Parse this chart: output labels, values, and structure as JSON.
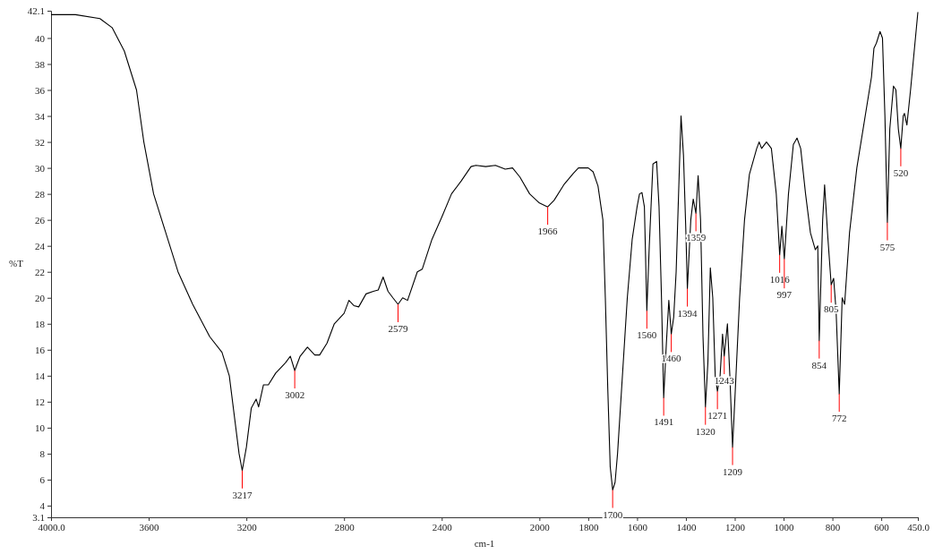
{
  "chart_data": {
    "type": "line",
    "xlabel": "cm-1",
    "ylabel": "%T",
    "xlim": [
      4000,
      450
    ],
    "ylim": [
      3.1,
      42.1
    ],
    "xticks": [
      {
        "value": 4000,
        "label": "4000.0"
      },
      3600,
      3200,
      2800,
      2400,
      2000,
      1800,
      1600,
      1400,
      1200,
      1000,
      800,
      600,
      {
        "value": 450,
        "label": "450.0"
      }
    ],
    "yticks": [
      3.1,
      4,
      6,
      8,
      10,
      12,
      14,
      16,
      18,
      20,
      22,
      24,
      26,
      28,
      30,
      32,
      34,
      36,
      38,
      40,
      42.1
    ],
    "grid": false,
    "marker": "none",
    "line_style": "solid",
    "series": [
      {
        "color": "#000000",
        "x": [
          4000,
          3900,
          3800,
          3750,
          3700,
          3650,
          3620,
          3580,
          3530,
          3480,
          3420,
          3350,
          3300,
          3270,
          3250,
          3230,
          3217,
          3200,
          3180,
          3160,
          3150,
          3130,
          3110,
          3080,
          3040,
          3020,
          3002,
          2980,
          2950,
          2920,
          2900,
          2870,
          2840,
          2800,
          2780,
          2760,
          2740,
          2710,
          2680,
          2660,
          2640,
          2620,
          2600,
          2579,
          2560,
          2540,
          2500,
          2480,
          2440,
          2400,
          2360,
          2320,
          2280,
          2260,
          2220,
          2180,
          2140,
          2110,
          2080,
          2040,
          2000,
          1966,
          1940,
          1900,
          1860,
          1840,
          1800,
          1780,
          1760,
          1740,
          1730,
          1720,
          1710,
          1700,
          1690,
          1680,
          1660,
          1640,
          1620,
          1600,
          1590,
          1580,
          1570,
          1560,
          1550,
          1535,
          1520,
          1510,
          1500,
          1491,
          1480,
          1470,
          1460,
          1450,
          1440,
          1420,
          1410,
          1400,
          1394,
          1380,
          1370,
          1359,
          1350,
          1340,
          1330,
          1320,
          1310,
          1300,
          1290,
          1280,
          1271,
          1260,
          1250,
          1243,
          1230,
          1220,
          1209,
          1200,
          1180,
          1160,
          1140,
          1110,
          1100,
          1090,
          1070,
          1050,
          1030,
          1016,
          1007,
          997,
          980,
          960,
          945,
          930,
          910,
          890,
          870,
          860,
          854,
          840,
          832,
          820,
          805,
          795,
          785,
          772,
          760,
          750,
          730,
          700,
          670,
          640,
          630,
          620,
          605,
          595,
          585,
          575,
          565,
          550,
          540,
          530,
          520,
          510,
          505,
          495,
          480,
          450
        ],
        "values": [
          41.8,
          41.8,
          41.5,
          40.8,
          39,
          36,
          32,
          28,
          25,
          22,
          19.5,
          17,
          15.8,
          14,
          11,
          8,
          6.7,
          8.5,
          11.5,
          12.2,
          11.6,
          13.3,
          13.3,
          14.2,
          15,
          15.5,
          14.4,
          15.5,
          16.2,
          15.6,
          15.6,
          16.5,
          18,
          18.8,
          19.8,
          19.4,
          19.3,
          20.3,
          20.5,
          20.6,
          21.6,
          20.5,
          20,
          19.5,
          20,
          19.8,
          22,
          22.2,
          24.5,
          26.2,
          28,
          29,
          30.1,
          30.2,
          30.1,
          30.2,
          29.9,
          30,
          29.3,
          28,
          27.3,
          27,
          27.5,
          28.7,
          29.6,
          30,
          30,
          29.7,
          28.6,
          26,
          20,
          13,
          7,
          5.2,
          5.8,
          8,
          14,
          20,
          24.5,
          27,
          28,
          28.1,
          27,
          19,
          24,
          30.3,
          30.5,
          27,
          20,
          12.3,
          16.5,
          19.8,
          17.2,
          18.5,
          22,
          34,
          31,
          25,
          20.7,
          26,
          27.6,
          26.5,
          29.4,
          26,
          17,
          11.6,
          15,
          22.3,
          20,
          14,
          12.8,
          14,
          17.2,
          15.5,
          18,
          14,
          8.5,
          12,
          20,
          26,
          29.5,
          31.5,
          32,
          31.5,
          32,
          31.5,
          28,
          23.3,
          25.5,
          23,
          28,
          31.8,
          32.3,
          31.5,
          28,
          25,
          23.7,
          24,
          16.7,
          26,
          28.7,
          25,
          21,
          21.5,
          19,
          12.6,
          20,
          19.5,
          25,
          30,
          33.5,
          37,
          39.2,
          39.6,
          40.5,
          40,
          34,
          25.8,
          33,
          36.3,
          36,
          33,
          31.5,
          34,
          34.2,
          33.3,
          36,
          42
        ]
      }
    ],
    "annotations": [
      {
        "text": "3217",
        "x": 3217,
        "y": 6.7
      },
      {
        "text": "3002",
        "x": 3002,
        "y": 14.4
      },
      {
        "text": "2579",
        "x": 2579,
        "y": 19.5
      },
      {
        "text": "1966",
        "x": 1966,
        "y": 27
      },
      {
        "text": "1700",
        "x": 1700,
        "y": 5.2
      },
      {
        "text": "1560",
        "x": 1560,
        "y": 19
      },
      {
        "text": "1491",
        "x": 1491,
        "y": 12.3
      },
      {
        "text": "1460",
        "x": 1460,
        "y": 17.2
      },
      {
        "text": "1394",
        "x": 1394,
        "y": 20.7
      },
      {
        "text": "1359",
        "x": 1359,
        "y": 26.5
      },
      {
        "text": "1320",
        "x": 1320,
        "y": 11.6
      },
      {
        "text": "1271",
        "x": 1271,
        "y": 12.8
      },
      {
        "text": "1243",
        "x": 1243,
        "y": 15.5
      },
      {
        "text": "1209",
        "x": 1209,
        "y": 8.5
      },
      {
        "text": "1016",
        "x": 1016,
        "y": 23.3
      },
      {
        "text": "997",
        "x": 997,
        "y": 23
      },
      {
        "text": "854",
        "x": 854,
        "y": 16.7
      },
      {
        "text": "805",
        "x": 805,
        "y": 21
      },
      {
        "text": "772",
        "x": 772,
        "y": 12.6
      },
      {
        "text": "575",
        "x": 575,
        "y": 25.8
      },
      {
        "text": "520",
        "x": 520,
        "y": 31.5
      }
    ]
  }
}
